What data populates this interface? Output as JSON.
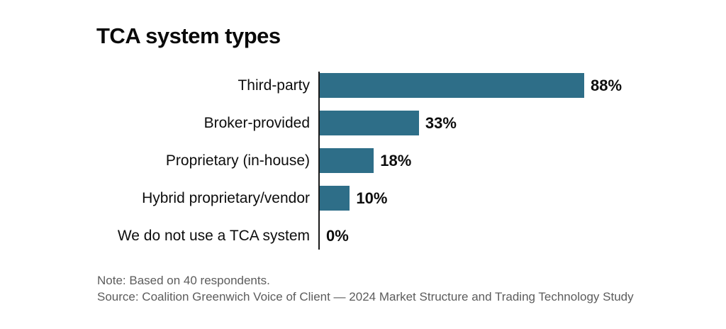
{
  "title": "TCA system types",
  "chart_data": {
    "type": "bar",
    "orientation": "horizontal",
    "title": "TCA system types",
    "categories": [
      "Third-party",
      "Broker-provided",
      "Proprietary (in-house)",
      "Hybrid proprietary/vendor",
      "We do not use a TCA system"
    ],
    "values": [
      88,
      33,
      18,
      10,
      0
    ],
    "value_labels": [
      "88%",
      "33%",
      "18%",
      "10%",
      "0%"
    ],
    "unit": "%",
    "xlabel": "",
    "ylabel": "",
    "xlim": [
      0,
      100
    ],
    "grid": false,
    "legend": "none",
    "bar_color": "#2E6E88",
    "axis_color": "#1a1a1a",
    "label_color": "#0d0d0d",
    "footnote_color": "#5c5c5c"
  },
  "footnotes": {
    "note": "Note: Based on 40 respondents.",
    "source": "Source: Coalition Greenwich Voice of Client — 2024 Market Structure and Trading Technology Study"
  }
}
